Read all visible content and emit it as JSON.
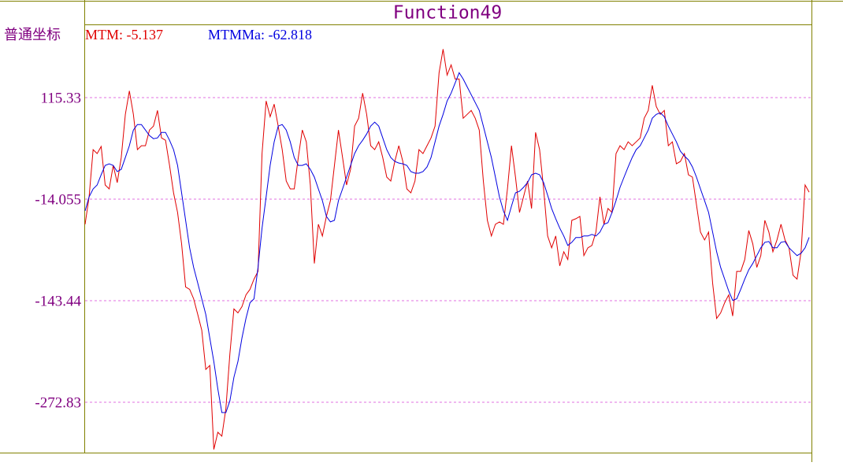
{
  "chart_data": {
    "type": "line",
    "title": "Function49",
    "scale_label": "普通坐标",
    "ylim": [
      -337,
      208.6
    ],
    "yticks": [
      115.33,
      -14.055,
      -143.44,
      -272.83
    ],
    "grid": true,
    "series": [
      {
        "name": "MTM: -5.137",
        "color": "#e00000",
        "values": [
          -46,
          -11,
          49,
          44,
          53,
          4,
          -1,
          29,
          7,
          39,
          94,
          124,
          94,
          49,
          54,
          54,
          74,
          79,
          99,
          64,
          61,
          29,
          -6,
          -31,
          -71,
          -126,
          -129,
          -141,
          -161,
          -181,
          -231,
          -226,
          -333,
          -311,
          -316,
          -281,
          -211,
          -154,
          -159,
          -151,
          -136,
          -129,
          -116,
          -106,
          44,
          111,
          91,
          107,
          79,
          49,
          9,
          -1,
          -1,
          39,
          74,
          59,
          4,
          -96,
          -46,
          -61,
          -36,
          -16,
          29,
          74,
          39,
          4,
          24,
          79,
          89,
          121,
          94,
          54,
          49,
          59,
          39,
          14,
          9,
          34,
          54,
          34,
          -1,
          -6,
          9,
          49,
          44,
          54,
          64,
          79,
          147,
          177,
          144,
          157,
          139,
          139,
          89,
          94,
          99,
          89,
          74,
          9,
          -41,
          -61,
          -46,
          -43,
          -46,
          -1,
          54,
          14,
          -31,
          -11,
          9,
          -26,
          71,
          49,
          -1,
          -61,
          -76,
          -61,
          -99,
          -81,
          -91,
          -41,
          -39,
          -36,
          -86,
          -76,
          -73,
          -56,
          -11,
          -46,
          -26,
          -31,
          44,
          54,
          49,
          59,
          54,
          59,
          64,
          89,
          99,
          131,
          104,
          94,
          99,
          54,
          59,
          31,
          34,
          44,
          17,
          14,
          -21,
          -56,
          -66,
          -56,
          -121,
          -166,
          -159,
          -146,
          -136,
          -163,
          -106,
          -106,
          -91,
          -54,
          -71,
          -101,
          -86,
          -41,
          -56,
          -81,
          -66,
          -46,
          -66,
          -76,
          -111,
          -116,
          -81,
          4,
          -5.137
        ]
      },
      {
        "name": "MTMMa: -62.818",
        "color": "#0000e0",
        "values": [
          -29,
          -11,
          -1,
          4,
          17,
          29,
          31,
          29,
          21,
          24,
          39,
          54,
          74,
          81,
          81,
          74,
          67,
          63,
          64,
          71,
          71,
          61,
          49,
          29,
          -6,
          -41,
          -76,
          -101,
          -121,
          -141,
          -161,
          -191,
          -221,
          -256,
          -286,
          -286,
          -271,
          -241,
          -221,
          -191,
          -166,
          -146,
          -141,
          -101,
          -51,
          -11,
          29,
          59,
          79,
          81,
          74,
          59,
          39,
          29,
          29,
          31,
          24,
          14,
          -1,
          -16,
          -36,
          -43,
          -41,
          -16,
          -1,
          14,
          29,
          44,
          54,
          61,
          69,
          79,
          84,
          79,
          64,
          49,
          39,
          34,
          32,
          31,
          29,
          21,
          19,
          19,
          21,
          27,
          39,
          59,
          79,
          94,
          111,
          121,
          134,
          147,
          139,
          129,
          119,
          109,
          99,
          79,
          59,
          39,
          14,
          -11,
          -29,
          -41,
          -23,
          -6,
          -4,
          1,
          7,
          17,
          19,
          17,
          7,
          -9,
          -26,
          -39,
          -51,
          -61,
          -73,
          -69,
          -63,
          -63,
          -61,
          -61,
          -59,
          -61,
          -56,
          -46,
          -44,
          -31,
          -16,
          1,
          14,
          27,
          39,
          49,
          54,
          64,
          74,
          89,
          94,
          96,
          91,
          79,
          69,
          59,
          47,
          41,
          36,
          27,
          14,
          -1,
          -16,
          -31,
          -56,
          -81,
          -101,
          -116,
          -131,
          -143,
          -141,
          -129,
          -116,
          -104,
          -96,
          -86,
          -76,
          -69,
          -68,
          -76,
          -76,
          -69,
          -68,
          -76,
          -81,
          -86,
          -83,
          -76,
          -62.818
        ]
      }
    ]
  }
}
